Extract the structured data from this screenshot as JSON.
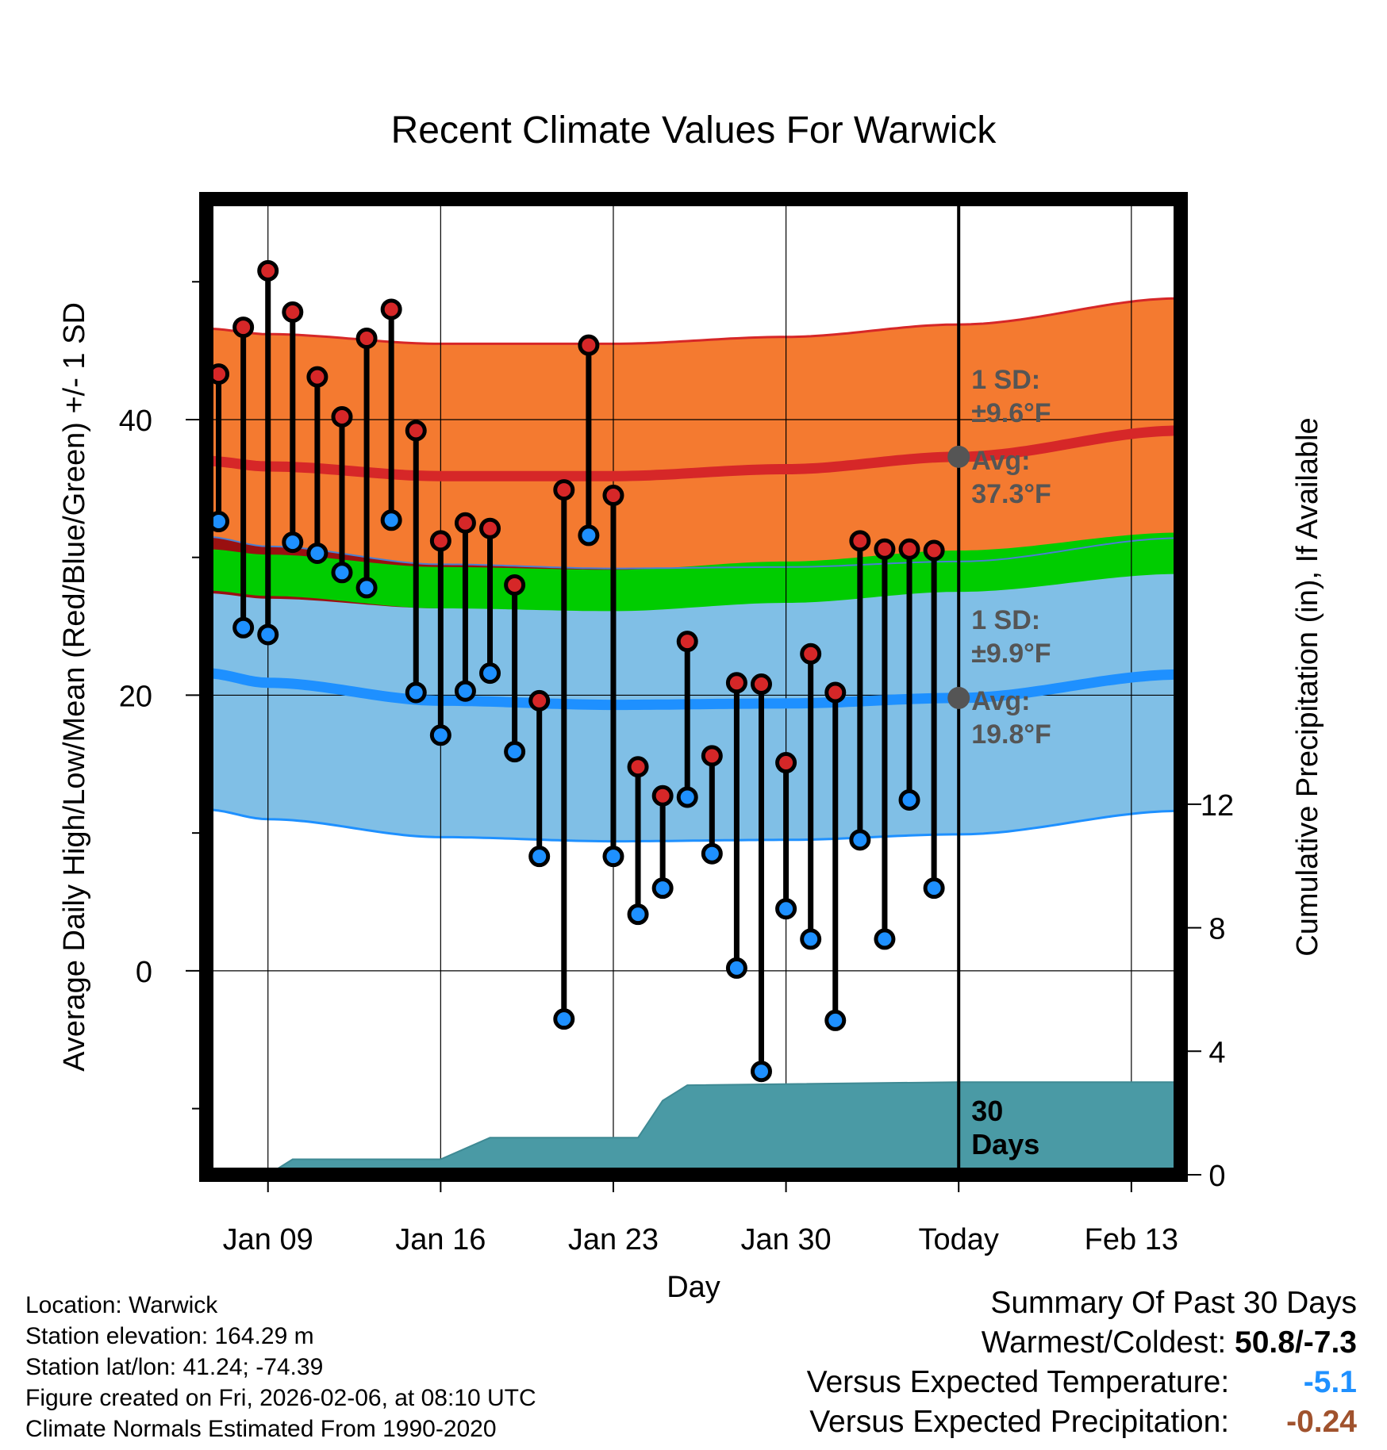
{
  "chart_data": {
    "type": "line",
    "title": "Recent Climate Values For Warwick",
    "xlabel": "Day",
    "ylabel_left": "Average Daily High/Low/Mean (Red/Blue/Green) +/- 1 SD",
    "ylabel_right": "Cumulative Precipitation (in), If Available",
    "xlim": [
      -2.5,
      37
    ],
    "ylim_left": [
      -14.8,
      56
    ],
    "ylim_right": [
      0,
      31.6
    ],
    "x_ticks": [
      {
        "x": 0,
        "label": "Jan 09"
      },
      {
        "x": 7,
        "label": "Jan 16"
      },
      {
        "x": 14,
        "label": "Jan 23"
      },
      {
        "x": 21,
        "label": "Jan 30"
      },
      {
        "x": 28,
        "label": "Today"
      },
      {
        "x": 35,
        "label": "Feb 13"
      }
    ],
    "y_ticks_left": [
      {
        "v": 0,
        "label": "0"
      },
      {
        "v": 20,
        "label": "20"
      },
      {
        "v": 40,
        "label": "40"
      }
    ],
    "y_minor_left": [
      -10,
      10,
      30,
      50
    ],
    "y_ticks_right": [
      {
        "v": 0,
        "label": "0"
      },
      {
        "v": 4,
        "label": "4"
      },
      {
        "v": 8,
        "label": "8"
      },
      {
        "v": 12,
        "label": "12"
      }
    ],
    "days": [
      -2,
      -1,
      0,
      1,
      2,
      3,
      4,
      5,
      6,
      7,
      8,
      9,
      10,
      11,
      12,
      13,
      14,
      15,
      16,
      17,
      18,
      19,
      20,
      21,
      22,
      23,
      24,
      25,
      26,
      27
    ],
    "highs": [
      43.3,
      46.7,
      50.8,
      47.8,
      43.1,
      40.2,
      45.9,
      48.0,
      39.2,
      31.2,
      32.5,
      32.1,
      28.0,
      19.6,
      34.9,
      45.4,
      34.5,
      14.8,
      12.7,
      23.9,
      15.6,
      20.9,
      20.8,
      15.1,
      23.0,
      20.2,
      31.2,
      30.6,
      30.6,
      30.5
    ],
    "lows": [
      32.6,
      24.9,
      24.4,
      31.1,
      30.3,
      28.9,
      27.8,
      32.7,
      20.2,
      17.1,
      20.3,
      21.6,
      15.9,
      8.3,
      -3.5,
      31.6,
      8.3,
      4.1,
      6.0,
      12.6,
      8.5,
      0.2,
      -7.3,
      4.5,
      2.3,
      -3.6,
      9.5,
      2.3,
      12.4,
      6.0
    ],
    "normals": {
      "x": [
        -2.5,
        0,
        7,
        14,
        21,
        28,
        37
      ],
      "high_mean": [
        37.0,
        36.6,
        35.9,
        35.9,
        36.4,
        37.3,
        39.2
      ],
      "high_sd": 9.6,
      "low_mean": [
        21.6,
        20.9,
        19.6,
        19.3,
        19.4,
        19.8,
        21.5
      ],
      "low_sd": 9.9,
      "mean": [
        29.1,
        28.7,
        27.8,
        27.6,
        28.2,
        29.0,
        30.3
      ],
      "mean_band": 1.5
    },
    "precip": {
      "x": [
        -2.5,
        0,
        1,
        7,
        9,
        15,
        16,
        17,
        28,
        37
      ],
      "y": [
        0,
        0,
        0.5,
        0.5,
        1.2,
        1.2,
        2.4,
        2.9,
        3.0,
        3.0
      ]
    },
    "annotations": {
      "high_sd_label": [
        "1 SD:",
        "±9.6°F"
      ],
      "high_avg_label": [
        "Avg:",
        "37.3°F"
      ],
      "low_sd_label": [
        "1 SD:",
        "±9.9°F"
      ],
      "low_avg_label": [
        "Avg:",
        "19.8°F"
      ],
      "days_label": [
        "30",
        "Days"
      ]
    },
    "today_marker": {
      "x": 28,
      "high_avg": 37.3,
      "low_avg": 19.8
    }
  },
  "footer": {
    "location": "Location: Warwick",
    "elevation": "Station elevation: 164.29 m",
    "latlon": "Station lat/lon: 41.24; -74.39",
    "created": "Figure created on Fri, 2026-02-06, at 08:10 UTC",
    "normals": "Climate Normals Estimated From 1990-2020"
  },
  "summary": {
    "title": "Summary Of Past 30 Days",
    "warm_cold_label": "Warmest/Coldest:",
    "warm_cold_value": "50.8/-7.3",
    "temp_label": "Versus Expected Temperature:",
    "temp_value": "-5.1",
    "temp_color": "#1e90ff",
    "precip_label": "Versus Expected Precipitation:",
    "precip_value": "-0.24",
    "precip_color": "#a0522d"
  }
}
